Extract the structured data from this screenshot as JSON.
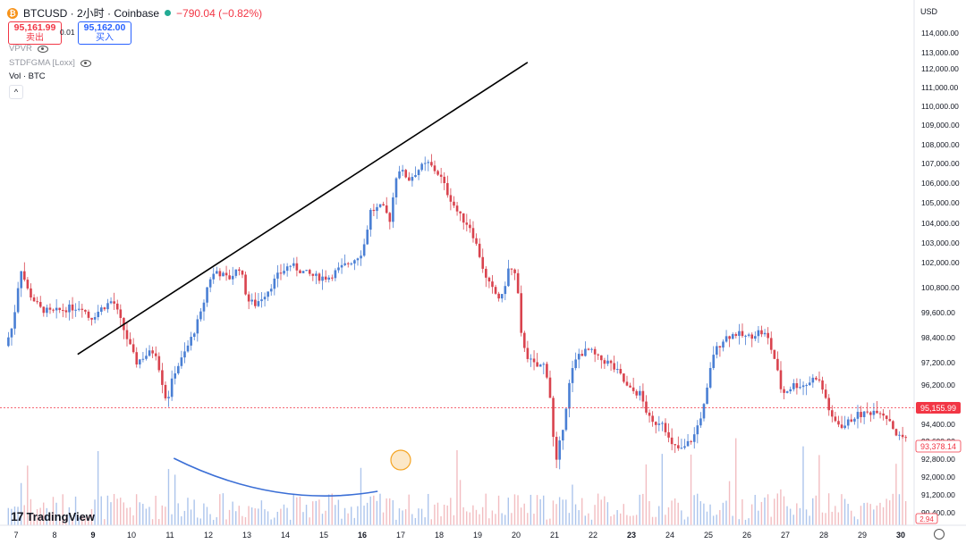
{
  "header": {
    "coin_glyph": "₿",
    "title": "BTCUSD · 2小时 · Coinbase",
    "change": "−790.04 (−0.82%)",
    "sell_price": "95,161.99",
    "sell_label": "卖出",
    "spread": "0.01",
    "buy_price": "95,162.00",
    "buy_label": "买入",
    "collapse_glyph": "^"
  },
  "indicators": [
    {
      "label": "VPVR"
    },
    {
      "label": "STDFGMA [Loxx]"
    },
    {
      "label": "Vol · BTC"
    }
  ],
  "axis": {
    "currency": "USD",
    "last_price_label": "95,155.99",
    "secondary_label": "93,378.14",
    "volume_label": "2.94"
  },
  "branding": {
    "logo_text": "TradingView",
    "logo_glyph": "17"
  },
  "colors": {
    "up": "#4a7fd4",
    "down": "#d9434e",
    "trendline": "#000000",
    "arc": "#3b6fd6",
    "marker": "#f5a524"
  },
  "chart_data": {
    "type": "candlestick",
    "y_ticks": [
      114000,
      113000,
      112000,
      111000,
      110000,
      109000,
      108000,
      107000,
      106000,
      105000,
      104000,
      103000,
      102000,
      100800,
      99600,
      98400,
      97200,
      96200,
      94400,
      93600,
      92800,
      92000,
      91200,
      90400
    ],
    "x_ticks": [
      {
        "label": "7",
        "day": 7,
        "bold": false
      },
      {
        "label": "8",
        "day": 8,
        "bold": false
      },
      {
        "label": "9",
        "day": 9,
        "bold": true
      },
      {
        "label": "10",
        "day": 10,
        "bold": false
      },
      {
        "label": "11",
        "day": 11,
        "bold": false
      },
      {
        "label": "12",
        "day": 12,
        "bold": false
      },
      {
        "label": "13",
        "day": 13,
        "bold": false
      },
      {
        "label": "14",
        "day": 14,
        "bold": false
      },
      {
        "label": "15",
        "day": 15,
        "bold": false
      },
      {
        "label": "16",
        "day": 16,
        "bold": true
      },
      {
        "label": "17",
        "day": 17,
        "bold": false
      },
      {
        "label": "18",
        "day": 18,
        "bold": false
      },
      {
        "label": "19",
        "day": 19,
        "bold": false
      },
      {
        "label": "20",
        "day": 20,
        "bold": false
      },
      {
        "label": "21",
        "day": 21,
        "bold": false
      },
      {
        "label": "22",
        "day": 22,
        "bold": false
      },
      {
        "label": "23",
        "day": 23,
        "bold": true
      },
      {
        "label": "24",
        "day": 24,
        "bold": false
      },
      {
        "label": "25",
        "day": 25,
        "bold": false
      },
      {
        "label": "26",
        "day": 26,
        "bold": false
      },
      {
        "label": "27",
        "day": 27,
        "bold": false
      },
      {
        "label": "28",
        "day": 28,
        "bold": false
      },
      {
        "label": "29",
        "day": 29,
        "bold": false
      },
      {
        "label": "30",
        "day": 30,
        "bold": true
      }
    ],
    "last_price": 95155.99,
    "path_points": [
      [
        6.8,
        98000
      ],
      [
        7.0,
        99000
      ],
      [
        7.2,
        101800
      ],
      [
        7.4,
        100600
      ],
      [
        7.7,
        99800
      ],
      [
        8.0,
        99600
      ],
      [
        8.4,
        99800
      ],
      [
        8.8,
        99900
      ],
      [
        9.0,
        99300
      ],
      [
        9.3,
        99800
      ],
      [
        9.6,
        100200
      ],
      [
        9.8,
        99200
      ],
      [
        10.0,
        98200
      ],
      [
        10.2,
        97200
      ],
      [
        10.4,
        97500
      ],
      [
        10.7,
        97800
      ],
      [
        10.9,
        96200
      ],
      [
        11.0,
        95400
      ],
      [
        11.2,
        96800
      ],
      [
        11.4,
        97400
      ],
      [
        11.6,
        98200
      ],
      [
        11.9,
        99600
      ],
      [
        12.1,
        101200
      ],
      [
        12.3,
        101600
      ],
      [
        12.6,
        101200
      ],
      [
        12.9,
        101800
      ],
      [
        13.1,
        100200
      ],
      [
        13.3,
        100000
      ],
      [
        13.6,
        100600
      ],
      [
        13.9,
        101400
      ],
      [
        14.2,
        101900
      ],
      [
        14.6,
        101500
      ],
      [
        14.9,
        101300
      ],
      [
        15.2,
        101300
      ],
      [
        15.5,
        101700
      ],
      [
        15.9,
        102200
      ],
      [
        16.1,
        102600
      ],
      [
        16.3,
        104600
      ],
      [
        16.6,
        104800
      ],
      [
        16.8,
        104200
      ],
      [
        17.0,
        106800
      ],
      [
        17.3,
        106200
      ],
      [
        17.6,
        106800
      ],
      [
        17.8,
        107000
      ],
      [
        18.1,
        106400
      ],
      [
        18.3,
        105500
      ],
      [
        18.6,
        104400
      ],
      [
        18.9,
        103800
      ],
      [
        19.1,
        102600
      ],
      [
        19.3,
        101200
      ],
      [
        19.5,
        100600
      ],
      [
        19.7,
        100200
      ],
      [
        19.9,
        101800
      ],
      [
        20.1,
        101300
      ],
      [
        20.2,
        98600
      ],
      [
        20.4,
        97400
      ],
      [
        20.6,
        97000
      ],
      [
        20.8,
        97100
      ],
      [
        20.9,
        96600
      ],
      [
        21.0,
        95200
      ],
      [
        21.1,
        92300
      ],
      [
        21.3,
        94300
      ],
      [
        21.5,
        96600
      ],
      [
        21.7,
        97600
      ],
      [
        22.0,
        97800
      ],
      [
        22.2,
        97400
      ],
      [
        22.5,
        97200
      ],
      [
        22.8,
        96600
      ],
      [
        23.0,
        96000
      ],
      [
        23.3,
        95800
      ],
      [
        23.6,
        94400
      ],
      [
        23.9,
        94600
      ],
      [
        24.1,
        93400
      ],
      [
        24.4,
        93200
      ],
      [
        24.7,
        93800
      ],
      [
        25.0,
        95400
      ],
      [
        25.2,
        97600
      ],
      [
        25.5,
        98400
      ],
      [
        25.8,
        98600
      ],
      [
        26.1,
        98400
      ],
      [
        26.4,
        98700
      ],
      [
        26.6,
        98500
      ],
      [
        26.8,
        97400
      ],
      [
        27.0,
        95800
      ],
      [
        27.3,
        96200
      ],
      [
        27.6,
        96200
      ],
      [
        27.9,
        96600
      ],
      [
        28.1,
        95800
      ],
      [
        28.3,
        94600
      ],
      [
        28.6,
        94300
      ],
      [
        28.9,
        94800
      ],
      [
        29.2,
        94900
      ],
      [
        29.5,
        95100
      ],
      [
        29.8,
        94600
      ],
      [
        30.0,
        93800
      ],
      [
        30.2,
        93800
      ]
    ],
    "annotations": {
      "trendline": {
        "x1": 8.6,
        "y1": 97600,
        "x2": 20.3,
        "y2": 112400
      },
      "volume_arc": {
        "x1": 11.1,
        "x2": 16.4,
        "ymin": 91800
      },
      "volume_marker": {
        "x": 17.0
      }
    }
  }
}
